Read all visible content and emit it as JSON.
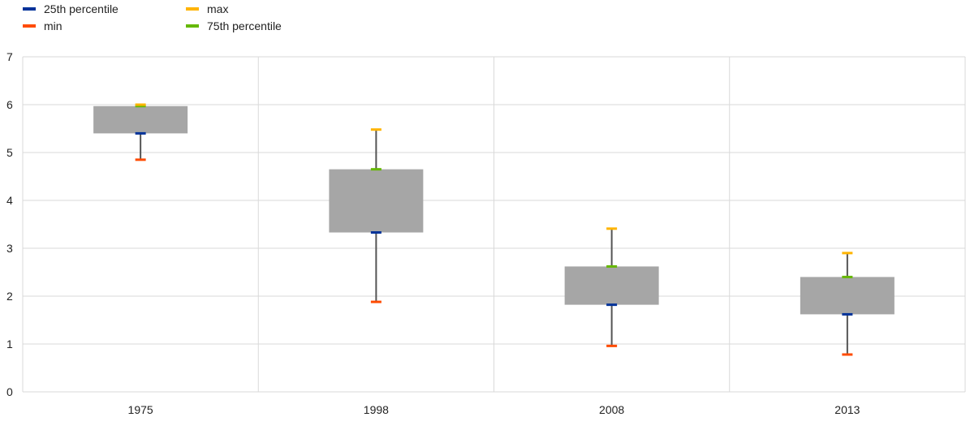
{
  "legend": [
    {
      "label": "25th percentile",
      "color": "#003299"
    },
    {
      "label": "max",
      "color": "#FFB400"
    },
    {
      "label": "min",
      "color": "#FF4B00"
    },
    {
      "label": "75th percentile",
      "color": "#65B800"
    }
  ],
  "chart_data": {
    "type": "box",
    "categories": [
      "1975",
      "1998",
      "2008",
      "2013"
    ],
    "series": [
      {
        "name": "min",
        "values": [
          4.85,
          1.88,
          0.96,
          0.78
        ]
      },
      {
        "name": "25th percentile",
        "values": [
          5.4,
          3.33,
          1.82,
          1.62
        ]
      },
      {
        "name": "75th percentile",
        "values": [
          5.97,
          4.65,
          2.62,
          2.4
        ]
      },
      {
        "name": "max",
        "values": [
          6.0,
          5.48,
          3.41,
          2.9
        ]
      }
    ],
    "ylim": [
      0,
      7
    ],
    "yticks": [
      "0",
      "1",
      "2",
      "3",
      "4",
      "5",
      "6",
      "7"
    ],
    "grid": true,
    "legend_position": "top-left",
    "box_color": "#A6A6A6",
    "whisker_color": "#555555"
  }
}
